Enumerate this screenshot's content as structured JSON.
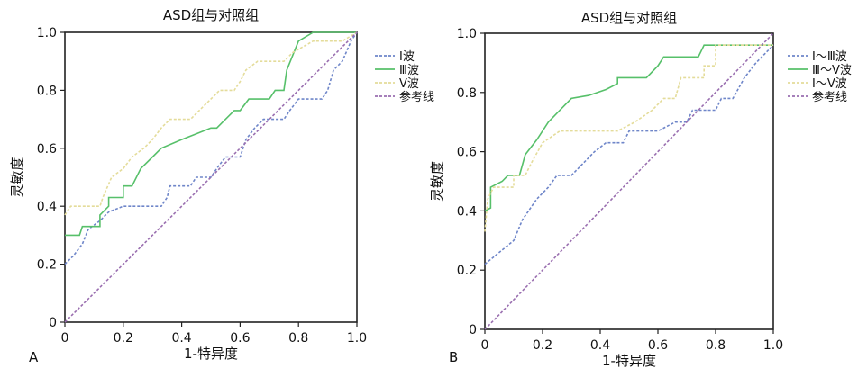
{
  "chart_data": [
    {
      "type": "line",
      "panel_label": "A",
      "title": "ASD组与对照组",
      "xlabel": "1-特异度",
      "ylabel": "灵敏度",
      "xlim": [
        0,
        1
      ],
      "ylim": [
        0,
        1
      ],
      "x_ticks": [
        "0",
        "0.2",
        "0.4",
        "0.6",
        "0.8",
        "1.0"
      ],
      "y_ticks": [
        "0",
        "0.2",
        "0.4",
        "0.6",
        "0.8",
        "1.0"
      ],
      "grid": false,
      "legend_position": "right",
      "series": [
        {
          "name": "Ⅰ波",
          "color": "#6f86c9",
          "dash": true,
          "points": [
            [
              0,
              0.2
            ],
            [
              0.03,
              0.23
            ],
            [
              0.06,
              0.27
            ],
            [
              0.08,
              0.32
            ],
            [
              0.12,
              0.35
            ],
            [
              0.15,
              0.38
            ],
            [
              0.2,
              0.4
            ],
            [
              0.33,
              0.4
            ],
            [
              0.35,
              0.43
            ],
            [
              0.36,
              0.47
            ],
            [
              0.43,
              0.47
            ],
            [
              0.45,
              0.5
            ],
            [
              0.5,
              0.5
            ],
            [
              0.52,
              0.53
            ],
            [
              0.55,
              0.57
            ],
            [
              0.6,
              0.57
            ],
            [
              0.62,
              0.63
            ],
            [
              0.65,
              0.67
            ],
            [
              0.68,
              0.7
            ],
            [
              0.75,
              0.7
            ],
            [
              0.77,
              0.73
            ],
            [
              0.8,
              0.77
            ],
            [
              0.88,
              0.77
            ],
            [
              0.9,
              0.8
            ],
            [
              0.92,
              0.87
            ],
            [
              0.95,
              0.9
            ],
            [
              0.98,
              0.97
            ],
            [
              1,
              1
            ]
          ]
        },
        {
          "name": "Ⅲ波",
          "color": "#57c06a",
          "dash": false,
          "points": [
            [
              0,
              0.3
            ],
            [
              0.05,
              0.3
            ],
            [
              0.06,
              0.33
            ],
            [
              0.12,
              0.33
            ],
            [
              0.12,
              0.37
            ],
            [
              0.15,
              0.4
            ],
            [
              0.15,
              0.43
            ],
            [
              0.2,
              0.43
            ],
            [
              0.2,
              0.47
            ],
            [
              0.23,
              0.47
            ],
            [
              0.26,
              0.53
            ],
            [
              0.3,
              0.57
            ],
            [
              0.33,
              0.6
            ],
            [
              0.4,
              0.63
            ],
            [
              0.45,
              0.65
            ],
            [
              0.5,
              0.67
            ],
            [
              0.52,
              0.67
            ],
            [
              0.55,
              0.7
            ],
            [
              0.58,
              0.73
            ],
            [
              0.6,
              0.73
            ],
            [
              0.63,
              0.77
            ],
            [
              0.7,
              0.77
            ],
            [
              0.72,
              0.8
            ],
            [
              0.75,
              0.8
            ],
            [
              0.76,
              0.87
            ],
            [
              0.8,
              0.97
            ],
            [
              0.85,
              1
            ],
            [
              1,
              1
            ]
          ]
        },
        {
          "name": "Ⅴ波",
          "color": "#e4dc9a",
          "dash": true,
          "points": [
            [
              0,
              0.37
            ],
            [
              0.02,
              0.4
            ],
            [
              0.12,
              0.4
            ],
            [
              0.13,
              0.43
            ],
            [
              0.16,
              0.5
            ],
            [
              0.2,
              0.53
            ],
            [
              0.23,
              0.57
            ],
            [
              0.27,
              0.6
            ],
            [
              0.3,
              0.63
            ],
            [
              0.33,
              0.67
            ],
            [
              0.36,
              0.7
            ],
            [
              0.43,
              0.7
            ],
            [
              0.46,
              0.73
            ],
            [
              0.5,
              0.77
            ],
            [
              0.53,
              0.8
            ],
            [
              0.58,
              0.8
            ],
            [
              0.6,
              0.83
            ],
            [
              0.62,
              0.87
            ],
            [
              0.66,
              0.9
            ],
            [
              0.75,
              0.9
            ],
            [
              0.78,
              0.93
            ],
            [
              0.85,
              0.97
            ],
            [
              0.95,
              0.97
            ],
            [
              1,
              1
            ]
          ]
        },
        {
          "name": "参考线",
          "color": "#9a6fb0",
          "dash": true,
          "points": [
            [
              0,
              0
            ],
            [
              1,
              1
            ]
          ]
        }
      ]
    },
    {
      "type": "line",
      "panel_label": "B",
      "title": "ASD组与对照组",
      "xlabel": "1-特异度",
      "ylabel": "灵敏度",
      "xlim": [
        0,
        1
      ],
      "ylim": [
        0,
        1
      ],
      "x_ticks": [
        "0",
        "0.2",
        "0.4",
        "0.6",
        "0.8",
        "1.0"
      ],
      "y_ticks": [
        "0",
        "0.2",
        "0.4",
        "0.6",
        "0.8",
        "1.0"
      ],
      "grid": false,
      "legend_position": "right",
      "series": [
        {
          "name": "Ⅰ～Ⅲ波",
          "color": "#6f86c9",
          "dash": true,
          "points": [
            [
              0,
              0.22
            ],
            [
              0.1,
              0.3
            ],
            [
              0.13,
              0.37
            ],
            [
              0.18,
              0.44
            ],
            [
              0.22,
              0.48
            ],
            [
              0.25,
              0.52
            ],
            [
              0.3,
              0.52
            ],
            [
              0.34,
              0.56
            ],
            [
              0.38,
              0.6
            ],
            [
              0.42,
              0.63
            ],
            [
              0.48,
              0.63
            ],
            [
              0.5,
              0.67
            ],
            [
              0.56,
              0.67
            ],
            [
              0.6,
              0.67
            ],
            [
              0.66,
              0.7
            ],
            [
              0.7,
              0.7
            ],
            [
              0.72,
              0.74
            ],
            [
              0.8,
              0.74
            ],
            [
              0.82,
              0.78
            ],
            [
              0.86,
              0.78
            ],
            [
              0.9,
              0.85
            ],
            [
              0.94,
              0.9
            ],
            [
              1,
              0.96
            ]
          ]
        },
        {
          "name": "Ⅲ～Ⅴ波",
          "color": "#57c06a",
          "dash": false,
          "points": [
            [
              0,
              0.4
            ],
            [
              0.02,
              0.41
            ],
            [
              0.02,
              0.48
            ],
            [
              0.06,
              0.5
            ],
            [
              0.08,
              0.52
            ],
            [
              0.12,
              0.52
            ],
            [
              0.14,
              0.59
            ],
            [
              0.18,
              0.64
            ],
            [
              0.22,
              0.7
            ],
            [
              0.26,
              0.74
            ],
            [
              0.3,
              0.78
            ],
            [
              0.36,
              0.79
            ],
            [
              0.42,
              0.81
            ],
            [
              0.46,
              0.83
            ],
            [
              0.46,
              0.85
            ],
            [
              0.5,
              0.85
            ],
            [
              0.56,
              0.85
            ],
            [
              0.6,
              0.89
            ],
            [
              0.62,
              0.92
            ],
            [
              0.74,
              0.92
            ],
            [
              0.76,
              0.96
            ],
            [
              1,
              0.96
            ]
          ]
        },
        {
          "name": "Ⅰ～Ⅴ波",
          "color": "#e4dc9a",
          "dash": true,
          "points": [
            [
              0,
              0.33
            ],
            [
              0.01,
              0.44
            ],
            [
              0.03,
              0.48
            ],
            [
              0.1,
              0.48
            ],
            [
              0.1,
              0.52
            ],
            [
              0.14,
              0.52
            ],
            [
              0.16,
              0.56
            ],
            [
              0.2,
              0.63
            ],
            [
              0.26,
              0.67
            ],
            [
              0.36,
              0.67
            ],
            [
              0.46,
              0.67
            ],
            [
              0.52,
              0.7
            ],
            [
              0.58,
              0.74
            ],
            [
              0.62,
              0.78
            ],
            [
              0.66,
              0.78
            ],
            [
              0.68,
              0.85
            ],
            [
              0.76,
              0.85
            ],
            [
              0.76,
              0.89
            ],
            [
              0.8,
              0.89
            ],
            [
              0.8,
              0.96
            ],
            [
              1,
              0.96
            ]
          ]
        },
        {
          "name": "参考线",
          "color": "#9a6fb0",
          "dash": true,
          "points": [
            [
              0,
              0
            ],
            [
              1,
              1
            ]
          ]
        }
      ]
    }
  ]
}
